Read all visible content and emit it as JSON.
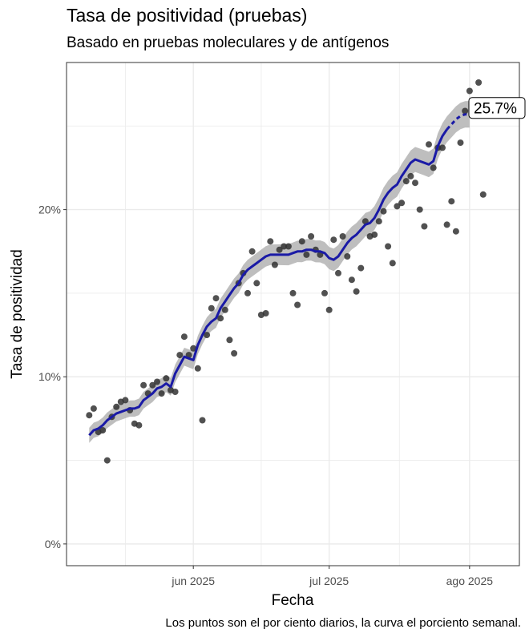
{
  "chart_data": {
    "type": "scatter",
    "title": "Tasa de positividad (pruebas)",
    "subtitle": "Basado en pruebas moleculares y de antígenos",
    "xlabel": "Fecha",
    "ylabel": "Tasa de positividad",
    "caption": "Los puntos son el por ciento diarios, la curva el porciento semanal.",
    "x_ticks": [
      {
        "label": "jun 2025",
        "date": "2025-06-01"
      },
      {
        "label": "jul 2025",
        "date": "2025-07-01"
      },
      {
        "label": "ago 2025",
        "date": "2025-08-01"
      }
    ],
    "y_ticks": [
      {
        "label": "0%",
        "value": 0
      },
      {
        "label": "10%",
        "value": 10
      },
      {
        "label": "20%",
        "value": 20
      }
    ],
    "xlim": [
      "2025-05-04",
      "2025-08-12"
    ],
    "ylim": [
      -1.3,
      28.8
    ],
    "grid": true,
    "end_label": "25.7%",
    "colors": {
      "points": "#333333",
      "curve": "#1a1aa6",
      "ribbon": "#b3b3b3",
      "grid": "#ebebeb",
      "border": "#333333"
    },
    "series": [
      {
        "type": "points",
        "x": [
          "2025-05-09",
          "2025-05-10",
          "2025-05-11",
          "2025-05-12",
          "2025-05-13",
          "2025-05-14",
          "2025-05-15",
          "2025-05-16",
          "2025-05-17",
          "2025-05-18",
          "2025-05-19",
          "2025-05-20",
          "2025-05-21",
          "2025-05-22",
          "2025-05-23",
          "2025-05-24",
          "2025-05-25",
          "2025-05-26",
          "2025-05-27",
          "2025-05-28",
          "2025-05-29",
          "2025-05-30",
          "2025-05-31",
          "2025-06-01",
          "2025-06-02",
          "2025-06-03",
          "2025-06-04",
          "2025-06-05",
          "2025-06-06",
          "2025-06-07",
          "2025-06-08",
          "2025-06-09",
          "2025-06-10",
          "2025-06-11",
          "2025-06-12",
          "2025-06-13",
          "2025-06-14",
          "2025-06-15",
          "2025-06-16",
          "2025-06-17",
          "2025-06-18",
          "2025-06-19",
          "2025-06-20",
          "2025-06-21",
          "2025-06-22",
          "2025-06-23",
          "2025-06-24",
          "2025-06-25",
          "2025-06-26",
          "2025-06-27",
          "2025-06-28",
          "2025-06-29",
          "2025-06-30",
          "2025-07-01",
          "2025-07-02",
          "2025-07-03",
          "2025-07-04",
          "2025-07-05",
          "2025-07-06",
          "2025-07-07",
          "2025-07-08",
          "2025-07-09",
          "2025-07-10",
          "2025-07-11",
          "2025-07-12",
          "2025-07-13",
          "2025-07-14",
          "2025-07-15",
          "2025-07-16",
          "2025-07-17",
          "2025-07-18",
          "2025-07-19",
          "2025-07-20",
          "2025-07-21",
          "2025-07-22",
          "2025-07-23",
          "2025-07-24",
          "2025-07-25",
          "2025-07-26",
          "2025-07-27",
          "2025-07-28",
          "2025-07-29",
          "2025-07-30",
          "2025-07-31",
          "2025-08-01",
          "2025-08-02",
          "2025-08-03",
          "2025-08-04"
        ],
        "y": [
          7.7,
          8.1,
          6.7,
          6.8,
          5.0,
          7.6,
          8.2,
          8.5,
          8.6,
          8.0,
          7.2,
          7.1,
          9.5,
          9.0,
          9.5,
          9.7,
          9.0,
          9.9,
          9.2,
          9.1,
          11.3,
          12.4,
          11.3,
          11.7,
          10.5,
          7.4,
          12.5,
          14.1,
          14.7,
          13.5,
          14.0,
          12.2,
          11.4,
          15.6,
          16.2,
          15.0,
          17.5,
          15.6,
          13.7,
          13.8,
          18.1,
          16.7,
          17.6,
          17.8,
          17.8,
          15.0,
          14.3,
          18.1,
          17.3,
          18.4,
          17.6,
          17.3,
          15.0,
          14.0,
          18.2,
          16.2,
          18.4,
          17.2,
          15.8,
          15.1,
          16.5,
          19.3,
          18.4,
          18.5,
          19.3,
          19.9,
          17.8,
          16.8,
          20.2,
          20.4,
          21.7,
          22.0,
          21.6,
          20.0,
          19.0,
          23.9,
          22.5,
          23.7,
          23.7,
          19.1,
          20.5,
          18.7,
          24.0,
          25.9,
          27.1,
          26.0,
          27.6,
          20.9
        ]
      },
      {
        "type": "line",
        "name": "",
        "x": [
          "2025-05-09",
          "2025-05-10",
          "2025-05-11",
          "2025-05-12",
          "2025-05-13",
          "2025-05-14",
          "2025-05-15",
          "2025-05-16",
          "2025-05-17",
          "2025-05-18",
          "2025-05-19",
          "2025-05-20",
          "2025-05-21",
          "2025-05-22",
          "2025-05-23",
          "2025-05-24",
          "2025-05-25",
          "2025-05-26",
          "2025-05-27",
          "2025-05-28",
          "2025-05-29",
          "2025-05-30",
          "2025-05-31",
          "2025-06-01",
          "2025-06-02",
          "2025-06-03",
          "2025-06-04",
          "2025-06-05",
          "2025-06-06",
          "2025-06-07",
          "2025-06-08",
          "2025-06-09",
          "2025-06-10",
          "2025-06-11",
          "2025-06-12",
          "2025-06-13",
          "2025-06-14",
          "2025-06-15",
          "2025-06-16",
          "2025-06-17",
          "2025-06-18",
          "2025-06-19",
          "2025-06-20",
          "2025-06-21",
          "2025-06-22",
          "2025-06-23",
          "2025-06-24",
          "2025-06-25",
          "2025-06-26",
          "2025-06-27",
          "2025-06-28",
          "2025-06-29",
          "2025-06-30",
          "2025-07-01",
          "2025-07-02",
          "2025-07-03",
          "2025-07-04",
          "2025-07-05",
          "2025-07-06",
          "2025-07-07",
          "2025-07-08",
          "2025-07-09",
          "2025-07-10",
          "2025-07-11",
          "2025-07-12",
          "2025-07-13",
          "2025-07-14",
          "2025-07-15",
          "2025-07-16",
          "2025-07-17",
          "2025-07-18",
          "2025-07-19",
          "2025-07-20",
          "2025-07-21",
          "2025-07-22",
          "2025-07-23",
          "2025-07-24",
          "2025-07-25",
          "2025-07-26",
          "2025-07-27",
          "2025-07-28",
          "2025-07-29",
          "2025-07-30",
          "2025-07-31",
          "2025-08-01"
        ],
        "y": [
          6.5,
          6.8,
          6.9,
          7.1,
          7.4,
          7.6,
          7.8,
          7.9,
          8.0,
          8.1,
          8.1,
          8.2,
          8.6,
          8.8,
          9.0,
          9.3,
          9.4,
          9.6,
          9.4,
          10.2,
          10.7,
          11.2,
          11.1,
          11.0,
          11.9,
          12.5,
          13.0,
          13.3,
          13.5,
          14.1,
          14.5,
          14.9,
          15.3,
          15.6,
          16.1,
          16.4,
          16.6,
          16.8,
          17.0,
          17.2,
          17.3,
          17.3,
          17.3,
          17.3,
          17.3,
          17.4,
          17.5,
          17.5,
          17.6,
          17.6,
          17.5,
          17.5,
          17.4,
          17.1,
          17.0,
          17.2,
          17.6,
          18.0,
          18.3,
          18.5,
          18.8,
          19.1,
          19.2,
          19.5,
          20.0,
          20.6,
          21.0,
          21.3,
          21.5,
          22.0,
          22.4,
          22.8,
          23.0,
          22.9,
          22.8,
          22.7,
          22.9,
          23.8,
          24.4,
          24.8,
          25.1,
          25.4,
          25.6,
          25.7,
          25.7
        ]
      }
    ]
  }
}
